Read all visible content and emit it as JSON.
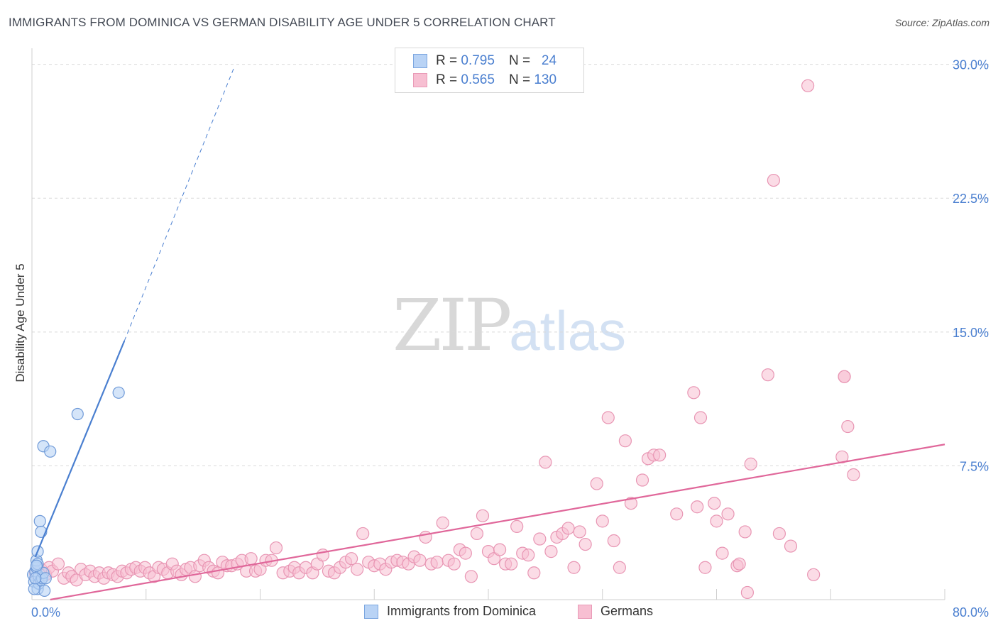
{
  "header": {
    "title": "IMMIGRANTS FROM DOMINICA VS GERMAN DISABILITY AGE UNDER 5 CORRELATION CHART",
    "source": "Source: ZipAtlas.com"
  },
  "legend": {
    "series1": {
      "r_label": "R =",
      "r_value": "0.795",
      "n_label": "N =",
      "n_value": "24"
    },
    "series2": {
      "r_label": "R =",
      "r_value": "0.565",
      "n_label": "N =",
      "n_value": "130"
    }
  },
  "watermark": {
    "zip": "ZIP",
    "atlas": "atlas"
  },
  "colors": {
    "blue": "#4a7fd0",
    "blue_fill": "#b9d3f5",
    "pink": "#e0679a",
    "pink_fill": "#f7bfd2",
    "grid": "#d9d9d9"
  },
  "chart_data": {
    "type": "scatter",
    "title": "IMMIGRANTS FROM DOMINICA VS GERMAN DISABILITY AGE UNDER 5 CORRELATION CHART",
    "ylabel": "Disability Age Under 5",
    "xlabel": "",
    "xlim": [
      0,
      80
    ],
    "ylim": [
      0,
      30.9
    ],
    "x_tick_labels": [
      "0.0%",
      "80.0%"
    ],
    "y_ticks": [
      7.5,
      15.0,
      22.5,
      30.0
    ],
    "y_tick_labels": [
      "7.5%",
      "15.0%",
      "22.5%",
      "30.0%"
    ],
    "grid": true,
    "legend_position": "top-center",
    "series": [
      {
        "name": "Immigrants from Dominica",
        "r": 0.795,
        "n": 24,
        "trend": {
          "x0": 0.3,
          "y0": 2.4,
          "x1": 8.1,
          "y1": 14.5,
          "dash_to_x": 17.7,
          "dash_to_y": 29.8
        },
        "points": [
          [
            0.1,
            1.4
          ],
          [
            0.2,
            1.0
          ],
          [
            0.3,
            1.6
          ],
          [
            0.4,
            1.8
          ],
          [
            0.4,
            2.2
          ],
          [
            0.5,
            2.7
          ],
          [
            0.5,
            2.0
          ],
          [
            0.5,
            0.6
          ],
          [
            0.6,
            0.9
          ],
          [
            0.6,
            1.3
          ],
          [
            0.7,
            4.4
          ],
          [
            0.8,
            3.8
          ],
          [
            0.8,
            1.1
          ],
          [
            0.9,
            1.2
          ],
          [
            1.0,
            8.6
          ],
          [
            1.0,
            1.5
          ],
          [
            1.1,
            0.5
          ],
          [
            1.2,
            1.2
          ],
          [
            1.6,
            8.3
          ],
          [
            4.0,
            10.4
          ],
          [
            7.6,
            11.6
          ],
          [
            0.2,
            0.6
          ],
          [
            0.3,
            1.2
          ],
          [
            0.4,
            1.9
          ]
        ]
      },
      {
        "name": "Germans",
        "r": 0.565,
        "n": 130,
        "trend": {
          "x0": 1.6,
          "y0": 0.0,
          "x1": 80.0,
          "y1": 8.7
        },
        "points": [
          [
            0.3,
            1.5
          ],
          [
            0.5,
            1.3
          ],
          [
            0.8,
            1.7
          ],
          [
            1.2,
            1.4
          ],
          [
            1.5,
            1.8
          ],
          [
            1.8,
            1.6
          ],
          [
            2.3,
            2.0
          ],
          [
            2.8,
            1.2
          ],
          [
            3.2,
            1.5
          ],
          [
            3.5,
            1.3
          ],
          [
            3.9,
            1.1
          ],
          [
            4.3,
            1.7
          ],
          [
            4.7,
            1.4
          ],
          [
            5.1,
            1.6
          ],
          [
            5.5,
            1.3
          ],
          [
            5.9,
            1.5
          ],
          [
            6.3,
            1.2
          ],
          [
            6.7,
            1.5
          ],
          [
            7.1,
            1.4
          ],
          [
            7.5,
            1.3
          ],
          [
            7.9,
            1.6
          ],
          [
            8.3,
            1.5
          ],
          [
            8.7,
            1.7
          ],
          [
            9.1,
            1.8
          ],
          [
            9.5,
            1.6
          ],
          [
            9.9,
            1.8
          ],
          [
            10.3,
            1.5
          ],
          [
            10.7,
            1.3
          ],
          [
            11.1,
            1.8
          ],
          [
            11.5,
            1.7
          ],
          [
            11.9,
            1.5
          ],
          [
            12.3,
            2.0
          ],
          [
            12.7,
            1.6
          ],
          [
            13.1,
            1.4
          ],
          [
            13.5,
            1.7
          ],
          [
            13.9,
            1.8
          ],
          [
            14.3,
            1.3
          ],
          [
            14.7,
            1.9
          ],
          [
            15.1,
            2.2
          ],
          [
            15.5,
            1.8
          ],
          [
            15.9,
            1.6
          ],
          [
            16.3,
            1.5
          ],
          [
            16.7,
            2.1
          ],
          [
            17.1,
            1.9
          ],
          [
            17.5,
            1.9
          ],
          [
            18.0,
            2.0
          ],
          [
            18.4,
            2.2
          ],
          [
            18.8,
            1.6
          ],
          [
            19.2,
            2.3
          ],
          [
            19.6,
            1.6
          ],
          [
            20.0,
            1.7
          ],
          [
            20.5,
            2.2
          ],
          [
            21.0,
            2.2
          ],
          [
            21.4,
            2.9
          ],
          [
            22.0,
            1.5
          ],
          [
            22.6,
            1.6
          ],
          [
            23.0,
            1.8
          ],
          [
            23.4,
            1.5
          ],
          [
            24.0,
            1.8
          ],
          [
            24.6,
            1.5
          ],
          [
            25.0,
            2.0
          ],
          [
            25.5,
            2.5
          ],
          [
            26.0,
            1.6
          ],
          [
            26.5,
            1.5
          ],
          [
            27.0,
            1.8
          ],
          [
            27.5,
            2.1
          ],
          [
            28.0,
            2.3
          ],
          [
            28.5,
            1.7
          ],
          [
            29.0,
            3.7
          ],
          [
            29.5,
            2.1
          ],
          [
            30.0,
            1.9
          ],
          [
            30.5,
            2.0
          ],
          [
            31.0,
            1.7
          ],
          [
            31.5,
            2.1
          ],
          [
            32.0,
            2.2
          ],
          [
            32.5,
            2.1
          ],
          [
            33.0,
            2.0
          ],
          [
            33.5,
            2.4
          ],
          [
            34.0,
            2.2
          ],
          [
            34.5,
            3.5
          ],
          [
            35.0,
            2.0
          ],
          [
            35.5,
            2.1
          ],
          [
            36.0,
            4.3
          ],
          [
            36.5,
            2.2
          ],
          [
            37.0,
            2.0
          ],
          [
            37.5,
            2.8
          ],
          [
            38.0,
            2.6
          ],
          [
            38.5,
            1.3
          ],
          [
            39.0,
            3.7
          ],
          [
            39.5,
            4.7
          ],
          [
            40.0,
            2.7
          ],
          [
            40.5,
            2.3
          ],
          [
            41.0,
            2.8
          ],
          [
            41.5,
            2.0
          ],
          [
            42.0,
            2.0
          ],
          [
            42.5,
            4.1
          ],
          [
            43.0,
            2.6
          ],
          [
            43.5,
            2.5
          ],
          [
            44.0,
            1.5
          ],
          [
            44.5,
            3.4
          ],
          [
            45.0,
            7.7
          ],
          [
            45.5,
            2.7
          ],
          [
            46.0,
            3.5
          ],
          [
            46.5,
            3.7
          ],
          [
            47.0,
            4.0
          ],
          [
            47.5,
            1.8
          ],
          [
            48.0,
            3.8
          ],
          [
            48.5,
            3.1
          ],
          [
            49.5,
            6.5
          ],
          [
            50.0,
            4.4
          ],
          [
            50.5,
            10.2
          ],
          [
            51.0,
            3.3
          ],
          [
            51.5,
            1.8
          ],
          [
            52.0,
            8.9
          ],
          [
            52.5,
            5.4
          ],
          [
            53.5,
            6.7
          ],
          [
            54.0,
            7.9
          ],
          [
            54.5,
            8.1
          ],
          [
            55.0,
            8.1
          ],
          [
            56.5,
            4.8
          ],
          [
            58.0,
            11.6
          ],
          [
            58.3,
            5.2
          ],
          [
            58.6,
            10.2
          ],
          [
            59.0,
            1.8
          ],
          [
            59.8,
            5.4
          ],
          [
            60.0,
            4.4
          ],
          [
            60.5,
            2.6
          ],
          [
            61.0,
            4.8
          ],
          [
            61.8,
            1.9
          ],
          [
            62.0,
            2.0
          ],
          [
            62.5,
            3.8
          ],
          [
            62.7,
            0.4
          ],
          [
            63.0,
            7.6
          ],
          [
            64.5,
            12.6
          ],
          [
            65.0,
            23.5
          ],
          [
            65.5,
            3.7
          ],
          [
            66.5,
            3.0
          ],
          [
            68.5,
            1.4
          ],
          [
            68.0,
            28.8
          ],
          [
            71.0,
            8.0
          ],
          [
            71.2,
            12.5
          ],
          [
            71.5,
            9.7
          ],
          [
            72.0,
            7.0
          ],
          [
            71.2,
            12.5
          ]
        ]
      }
    ]
  },
  "bottom_legend": {
    "item1": "Immigrants from Dominica",
    "item2": "Germans"
  }
}
